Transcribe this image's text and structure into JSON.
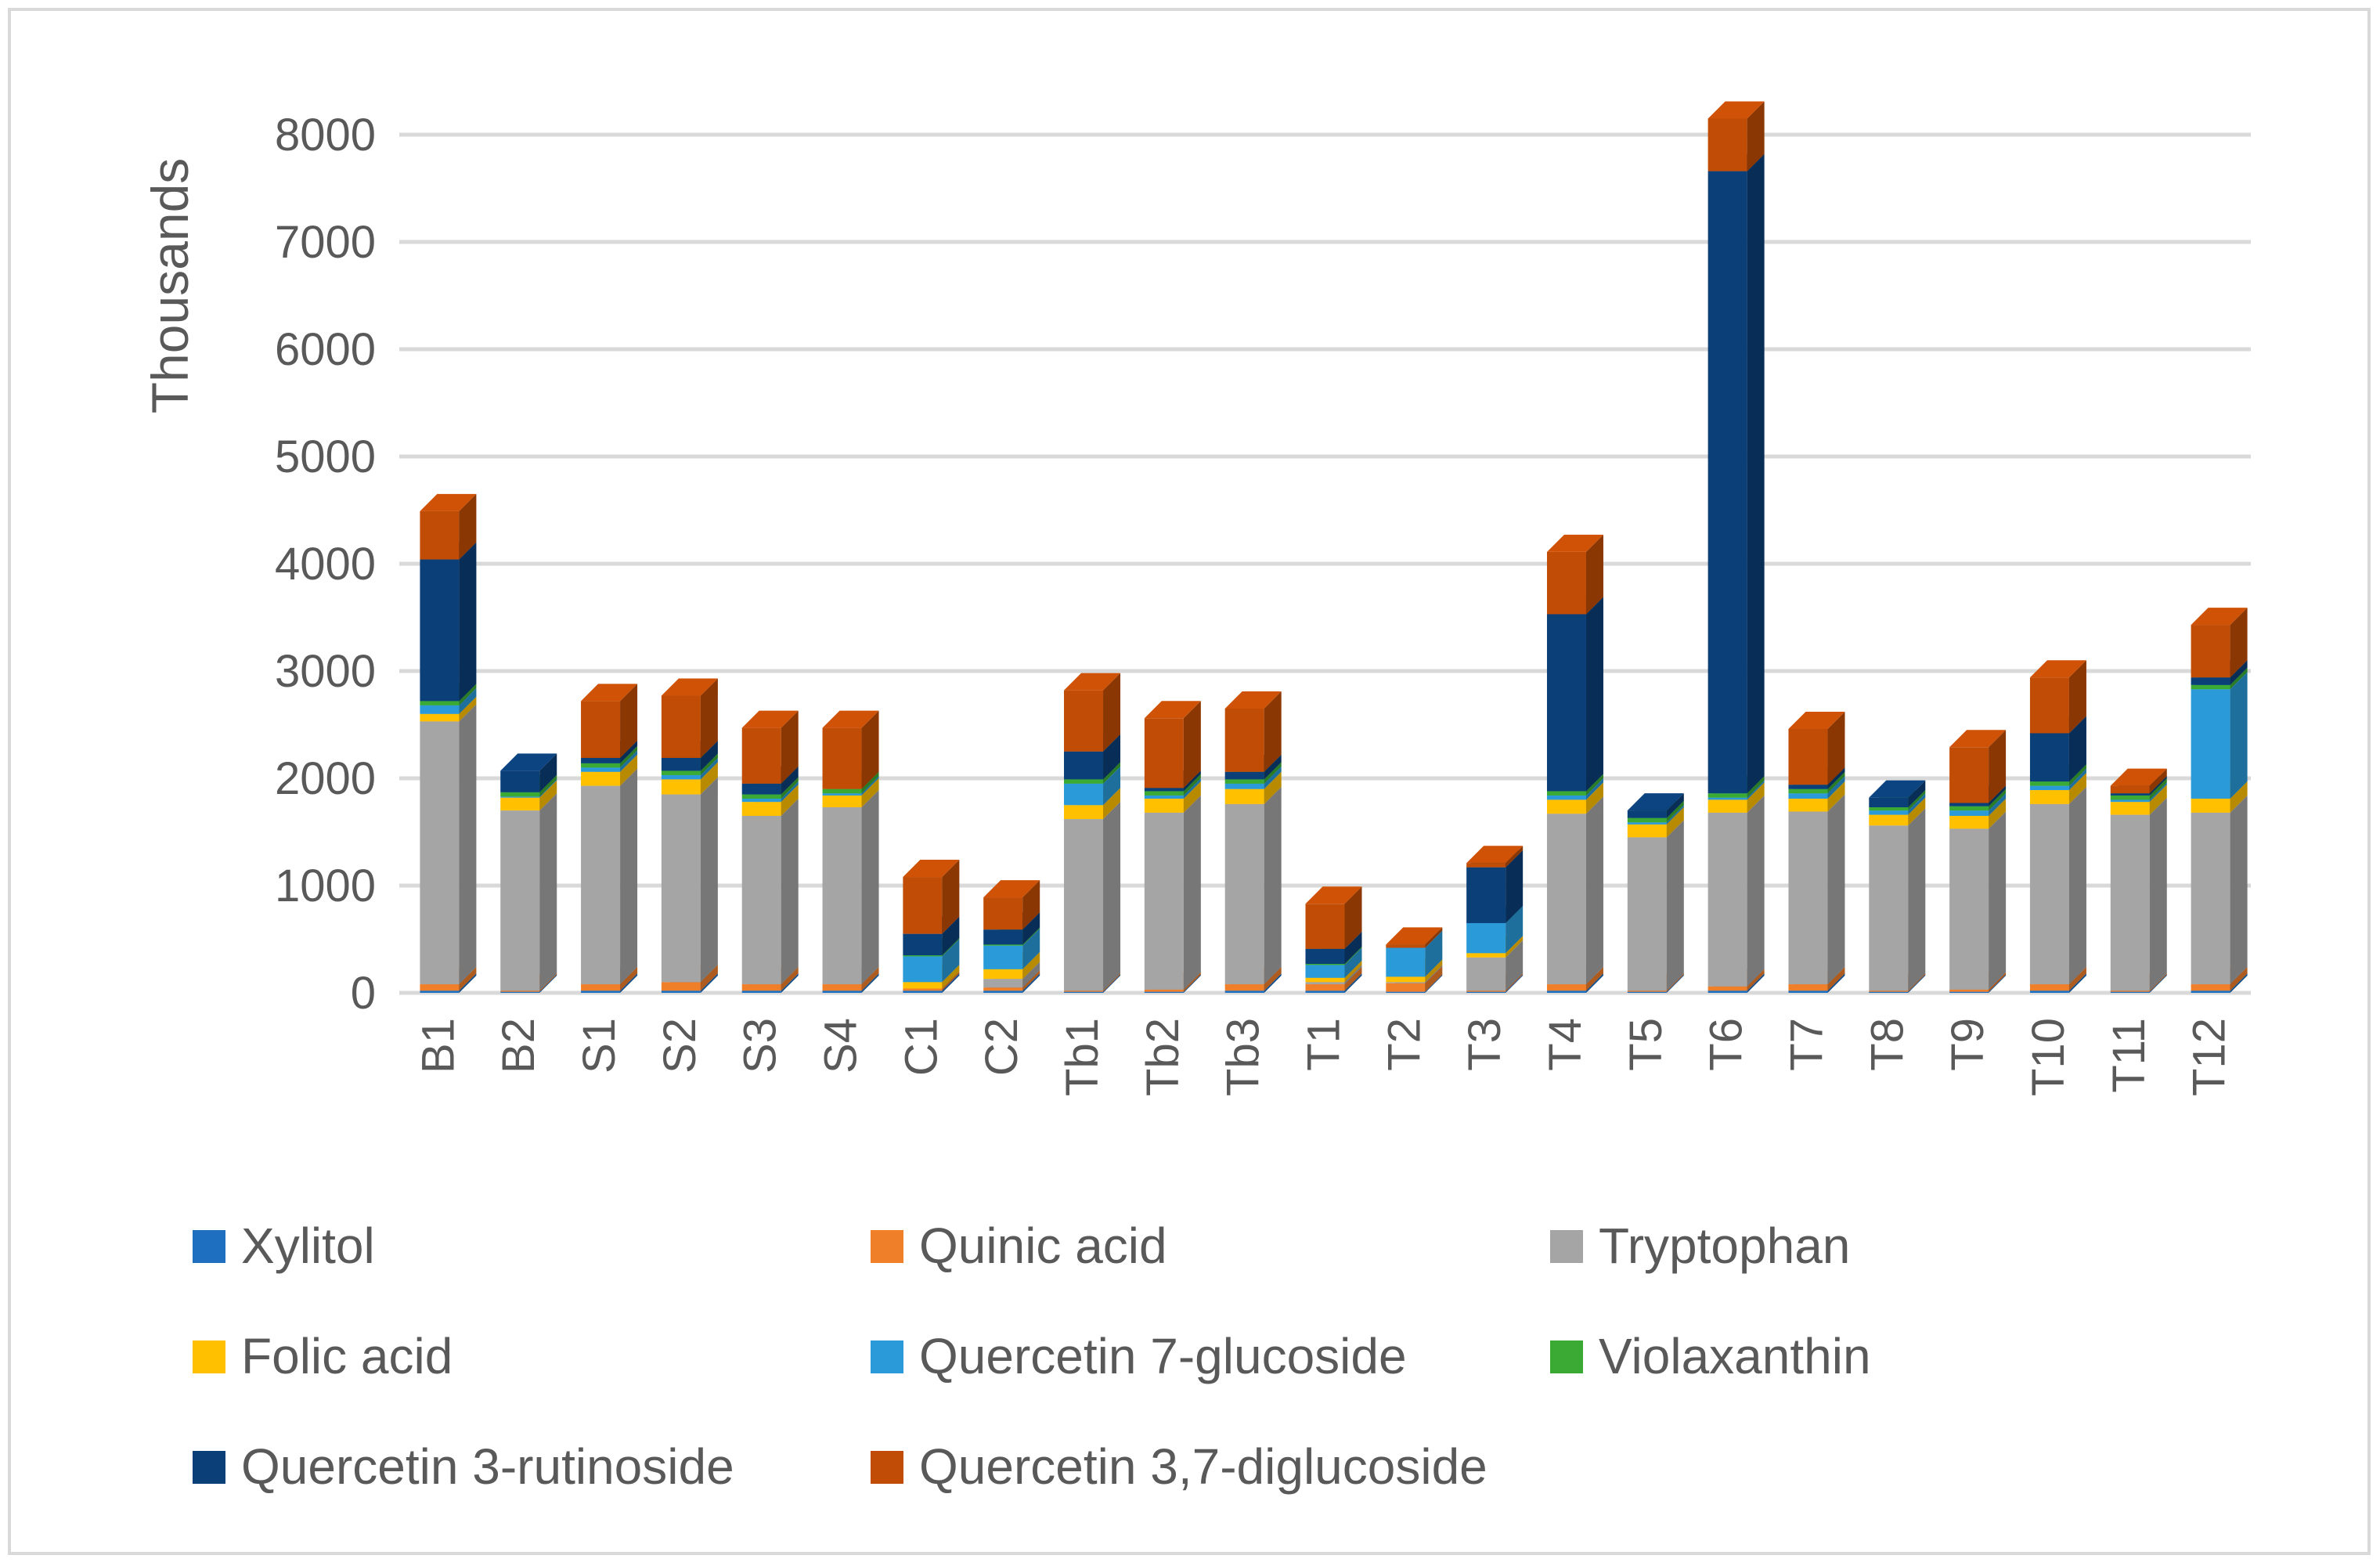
{
  "chart_data": {
    "type": "bar",
    "stacked": true,
    "three_d": true,
    "title": "",
    "xlabel": "",
    "ylabel": "Thousands",
    "ylim": [
      0,
      8000
    ],
    "yticks": [
      0,
      1000,
      2000,
      3000,
      4000,
      5000,
      6000,
      7000,
      8000
    ],
    "grid": true,
    "legend_position": "bottom",
    "categories": [
      "B1",
      "B2",
      "S1",
      "S2",
      "S3",
      "S4",
      "C1",
      "C2",
      "Tb1",
      "Tb2",
      "Tb3",
      "T1",
      "T2",
      "T3",
      "T4",
      "T5",
      "T6",
      "T7",
      "T8",
      "T9",
      "T10",
      "T11",
      "T12"
    ],
    "series": [
      {
        "name": "Xylitol",
        "color": "#1f6fc0",
        "values": [
          20,
          10,
          20,
          20,
          20,
          20,
          20,
          20,
          10,
          10,
          20,
          20,
          10,
          10,
          20,
          10,
          20,
          20,
          10,
          10,
          20,
          10,
          20
        ]
      },
      {
        "name": "Quinic acid",
        "color": "#f07f2a",
        "values": [
          60,
          10,
          60,
          80,
          60,
          60,
          20,
          30,
          10,
          20,
          60,
          60,
          80,
          10,
          60,
          10,
          40,
          60,
          10,
          20,
          60,
          10,
          60
        ]
      },
      {
        "name": "Tryptophan",
        "color": "#a5a5a5",
        "values": [
          2450,
          1680,
          1850,
          1750,
          1570,
          1650,
          0,
          80,
          1600,
          1650,
          1680,
          20,
          10,
          310,
          1590,
          1430,
          1620,
          1610,
          1540,
          1500,
          1680,
          1640,
          1600
        ]
      },
      {
        "name": "Folic acid",
        "color": "#ffc000",
        "values": [
          70,
          120,
          130,
          140,
          130,
          110,
          60,
          90,
          130,
          130,
          140,
          40,
          50,
          40,
          130,
          120,
          120,
          120,
          100,
          120,
          130,
          120,
          130
        ]
      },
      {
        "name": "Quercetin 7-glucoside",
        "color": "#2a9ad8",
        "values": [
          80,
          10,
          40,
          40,
          30,
          20,
          240,
          220,
          200,
          30,
          50,
          120,
          270,
          280,
          40,
          20,
          20,
          50,
          40,
          50,
          40,
          20,
          1020
        ]
      },
      {
        "name": "Violaxanthin",
        "color": "#3aaa35",
        "values": [
          40,
          40,
          40,
          40,
          40,
          40,
          10,
          10,
          40,
          40,
          40,
          10,
          0,
          0,
          40,
          40,
          40,
          40,
          30,
          40,
          40,
          40,
          40
        ]
      },
      {
        "name": "Quercetin 3-rutinoside",
        "color": "#0b3f78",
        "values": [
          1320,
          200,
          50,
          120,
          100,
          0,
          200,
          140,
          260,
          30,
          70,
          140,
          0,
          520,
          1650,
          70,
          5800,
          40,
          90,
          30,
          450,
          20,
          70
        ]
      },
      {
        "name": "Quercetin 3,7-diglucoside",
        "color": "#c04c06",
        "values": [
          450,
          0,
          530,
          580,
          520,
          570,
          530,
          300,
          570,
          650,
          590,
          420,
          30,
          40,
          580,
          0,
          490,
          520,
          0,
          520,
          520,
          70,
          490
        ]
      }
    ]
  }
}
